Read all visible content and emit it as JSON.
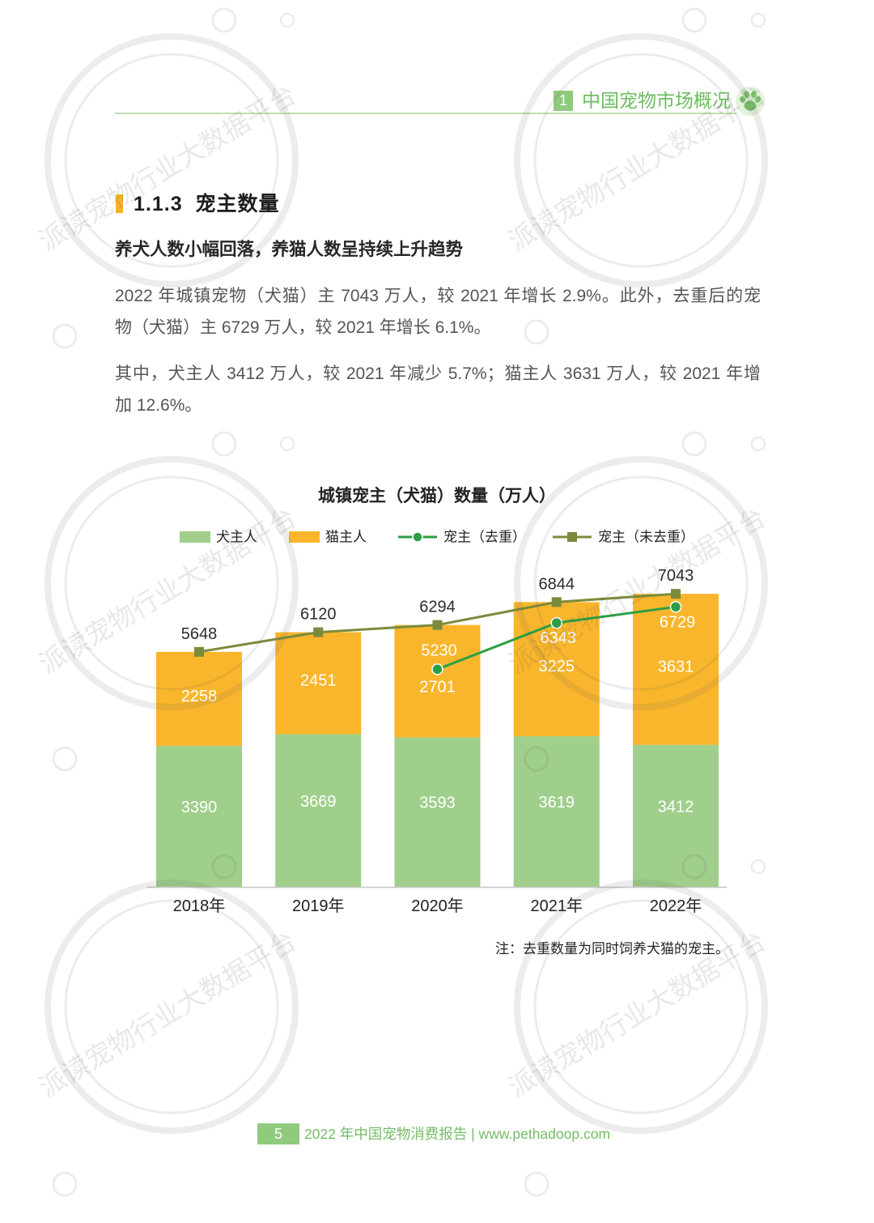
{
  "header": {
    "chapter_number": "1",
    "chapter_title": "中国宠物市场概况",
    "icon": "paw-icon",
    "accent_color": "#8fca7d"
  },
  "section": {
    "title": "1.1.3 宠主数量",
    "subtitle": "养犬人数小幅回落，养猫人数呈持续上升趋势",
    "paragraphs": [
      {
        "lines": [
          "2022 年城镇宠物（犬猫）主 7043 万人，较 2021 年增长 2.9%。此外，去重后的宠",
          "物（犬猫）主 6729 万人，较 2021 年增长 6.1%。"
        ]
      },
      {
        "lines": [
          "其中，犬主人 3412 万人，较 2021 年减少 5.7%；猫主人 3631 万人，较 2021 年增",
          "加 12.6%。"
        ]
      }
    ]
  },
  "chart_data": {
    "type": "bar",
    "stacked": true,
    "title": "城镇宠主（犬猫）数量（万人）",
    "categories": [
      "2018年",
      "2019年",
      "2020年",
      "2021年",
      "2022年"
    ],
    "series": [
      {
        "name": "犬主人",
        "type": "bar",
        "color": "#9fcf8b",
        "values": [
          3390,
          3669,
          3593,
          3619,
          3412
        ]
      },
      {
        "name": "猫主人",
        "type": "bar",
        "color": "#f9b62c",
        "values": [
          2258,
          2451,
          2701,
          3225,
          3631
        ]
      },
      {
        "name": "宠主（去重）",
        "type": "line",
        "marker": "circle",
        "color": "#2c9f45",
        "values": [
          null,
          null,
          5230,
          6343,
          6729
        ]
      },
      {
        "name": "宠主（未去重）",
        "type": "line",
        "marker": "square",
        "color": "#7b8b3d",
        "values": [
          5648,
          6120,
          6294,
          6844,
          7043
        ]
      }
    ],
    "ylim": [
      0,
      8000
    ],
    "grid": false,
    "legend_position": "top",
    "note": "注：去重数量为同时饲养犬猫的宠主。"
  },
  "footer": {
    "page_number": "5",
    "text": "2022 年中国宠物消费报告 | www.pethadoop.com"
  },
  "watermark": {
    "text": "派读宠物行业大数据平台"
  }
}
